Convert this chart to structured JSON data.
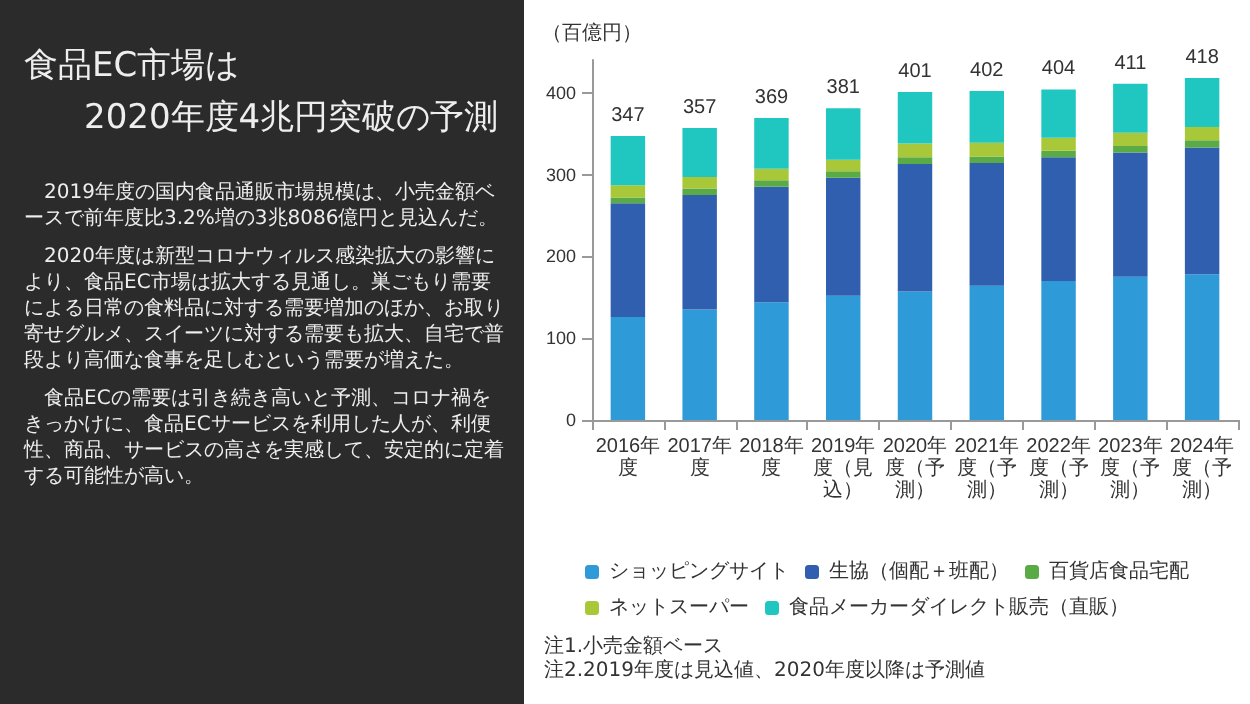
{
  "chart_data": {
    "type": "bar",
    "stacked": true,
    "title": "食品EC市場は",
    "subtitle": "2020年度4兆円突破の予測",
    "ylabel": "（百億円）",
    "categories": [
      "2016年度",
      "2017年度",
      "2018年度",
      "2019年度（見込）",
      "2020年度（予測）",
      "2021年度（予測）",
      "2022年度（予測）",
      "2023年度（予測）",
      "2024年度（予測）"
    ],
    "series": [
      {
        "name": "ショッピングサイト",
        "color": "#2e9ad8",
        "values": [
          126,
          135,
          144,
          152,
          157,
          164,
          170,
          175,
          178
        ]
      },
      {
        "name": "生協（個配＋班配）",
        "color": "#2f5fae",
        "values": [
          139,
          140,
          141,
          144,
          156,
          150,
          151,
          152,
          155
        ]
      },
      {
        "name": "百貨店食品宅配",
        "color": "#5aaa46",
        "values": [
          7,
          8,
          8,
          8,
          8,
          8,
          8,
          8,
          9
        ]
      },
      {
        "name": "ネットスーパー",
        "color": "#a8c83a",
        "values": [
          15,
          14,
          14,
          14,
          17,
          17,
          16,
          16,
          16
        ]
      },
      {
        "name": "食品メーカーダイレクト販売（直販）",
        "color": "#1fc7c0",
        "values": [
          60,
          60,
          62,
          63,
          63,
          63,
          59,
          60,
          60
        ]
      }
    ],
    "totals": [
      "347",
      "357",
      "369",
      "381",
      "401",
      "402",
      "404",
      "411",
      "418"
    ],
    "ylim": [
      0,
      440
    ],
    "yticks": [
      0,
      100,
      200,
      300,
      400
    ],
    "grid": false,
    "legend": "bottom",
    "annotations": [
      "2019年度の国内食品通販市場規模は、小売金額ベースで前年度比3.2%増の3兆8086億円と見込んだ。",
      "2020年度は新型コロナウィルス感染拡大の影響により、食品EC市場は拡大する見通し。巣ごもり需要による日常の食料品に対する需要増加のほか、お取り寄せグルメ、スイーツに対する需要も拡大、自宅で普段より高価な食事を足しむという需要が増えた。",
      "食品ECの需要は引き続き高いと予測、コロナ禍をきっかけに、食品ECサービスを利用した人が、利便性、商品、サービスの高さを実感して、安定的に定着する可能性が高い。",
      "注1.小売金額ベース",
      "注2.2019年度は見込値、2020年度以降は予測値"
    ]
  }
}
